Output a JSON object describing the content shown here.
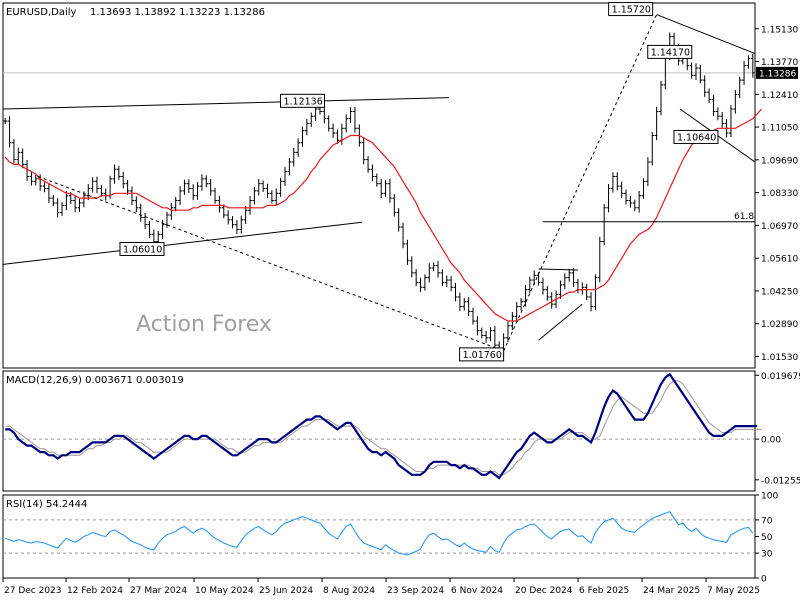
{
  "chart_data": [
    {
      "panel": "price",
      "type": "candlestick",
      "title": "EURUSD,Daily",
      "ohlc_readout": "1.13693 1.13892 1.13223 1.13286",
      "last_price_label": "1.13286",
      "watermark": "Action Forex",
      "ylim": [
        1.0105,
        1.162
      ],
      "y_ticks": [
        "1.15130",
        "1.13770",
        "1.12410",
        "1.11050",
        "1.09690",
        "1.08330",
        "1.06970",
        "1.05610",
        "1.04250",
        "1.02890",
        "1.01530"
      ],
      "close_series": [
        1.113,
        1.104,
        1.097,
        1.1,
        1.095,
        1.09,
        1.088,
        1.089,
        1.086,
        1.085,
        1.081,
        1.079,
        1.075,
        1.078,
        1.082,
        1.08,
        1.077,
        1.079,
        1.082,
        1.085,
        1.088,
        1.085,
        1.083,
        1.082,
        1.089,
        1.093,
        1.09,
        1.087,
        1.084,
        1.08,
        1.077,
        1.073,
        1.07,
        1.066,
        1.063,
        1.066,
        1.07,
        1.074,
        1.077,
        1.08,
        1.084,
        1.087,
        1.085,
        1.082,
        1.086,
        1.089,
        1.087,
        1.084,
        1.08,
        1.077,
        1.074,
        1.072,
        1.07,
        1.068,
        1.072,
        1.076,
        1.08,
        1.084,
        1.087,
        1.085,
        1.083,
        1.08,
        1.083,
        1.088,
        1.092,
        1.096,
        1.1,
        1.104,
        1.109,
        1.112,
        1.115,
        1.118,
        1.117,
        1.114,
        1.11,
        1.108,
        1.105,
        1.11,
        1.114,
        1.117,
        1.11,
        1.104,
        1.097,
        1.093,
        1.09,
        1.087,
        1.083,
        1.087,
        1.081,
        1.075,
        1.069,
        1.062,
        1.055,
        1.05,
        1.046,
        1.044,
        1.048,
        1.052,
        1.053,
        1.05,
        1.046,
        1.047,
        1.044,
        1.04,
        1.036,
        1.038,
        1.034,
        1.03,
        1.026,
        1.024,
        1.023,
        1.026,
        1.02,
        1.018,
        1.023,
        1.028,
        1.032,
        1.036,
        1.038,
        1.043,
        1.047,
        1.049,
        1.046,
        1.043,
        1.04,
        1.037,
        1.041,
        1.045,
        1.048,
        1.05,
        1.046,
        1.043,
        1.044,
        1.04,
        1.036,
        1.048,
        1.063,
        1.077,
        1.085,
        1.09,
        1.086,
        1.083,
        1.08,
        1.079,
        1.077,
        1.082,
        1.088,
        1.096,
        1.107,
        1.117,
        1.128,
        1.14,
        1.148,
        1.143,
        1.138,
        1.14,
        1.136,
        1.132,
        1.135,
        1.13,
        1.125,
        1.122,
        1.117,
        1.115,
        1.112,
        1.108,
        1.118,
        1.124,
        1.13,
        1.136,
        1.139,
        1.133
      ],
      "ma_series": [
        1.098,
        1.096,
        1.095,
        1.095,
        1.094,
        1.093,
        1.092,
        1.091,
        1.089,
        1.088,
        1.087,
        1.086,
        1.085,
        1.084,
        1.083,
        1.083,
        1.082,
        1.081,
        1.081,
        1.081,
        1.081,
        1.081,
        1.082,
        1.082,
        1.082,
        1.083,
        1.083,
        1.083,
        1.083,
        1.083,
        1.083,
        1.082,
        1.081,
        1.08,
        1.079,
        1.078,
        1.077,
        1.077,
        1.076,
        1.076,
        1.076,
        1.076,
        1.076,
        1.077,
        1.077,
        1.078,
        1.078,
        1.078,
        1.078,
        1.078,
        1.078,
        1.077,
        1.077,
        1.077,
        1.077,
        1.077,
        1.077,
        1.077,
        1.077,
        1.077,
        1.078,
        1.078,
        1.078,
        1.079,
        1.08,
        1.082,
        1.083,
        1.085,
        1.087,
        1.089,
        1.092,
        1.094,
        1.097,
        1.099,
        1.101,
        1.103,
        1.104,
        1.105,
        1.106,
        1.107,
        1.107,
        1.107,
        1.106,
        1.105,
        1.104,
        1.102,
        1.1,
        1.098,
        1.096,
        1.094,
        1.091,
        1.088,
        1.085,
        1.082,
        1.079,
        1.075,
        1.072,
        1.069,
        1.066,
        1.063,
        1.06,
        1.057,
        1.054,
        1.052,
        1.05,
        1.047,
        1.045,
        1.043,
        1.041,
        1.039,
        1.037,
        1.035,
        1.033,
        1.032,
        1.031,
        1.03,
        1.03,
        1.03,
        1.031,
        1.032,
        1.033,
        1.034,
        1.035,
        1.036,
        1.037,
        1.038,
        1.039,
        1.04,
        1.041,
        1.042,
        1.042,
        1.043,
        1.043,
        1.043,
        1.043,
        1.043,
        1.044,
        1.045,
        1.047,
        1.05,
        1.053,
        1.056,
        1.059,
        1.062,
        1.064,
        1.066,
        1.067,
        1.068,
        1.07,
        1.073,
        1.077,
        1.081,
        1.085,
        1.089,
        1.093,
        1.097,
        1.1,
        1.103,
        1.105,
        1.107,
        1.108,
        1.109,
        1.109,
        1.11,
        1.11,
        1.11,
        1.11,
        1.11,
        1.111,
        1.112,
        1.113,
        1.114,
        1.116,
        1.118
      ],
      "annotations": [
        {
          "label": "1.15720",
          "x": 149,
          "y": 1.1572
        },
        {
          "label": "1.14170",
          "x": 152,
          "y": 1.1417
        },
        {
          "label": "1.12136",
          "x": 68,
          "y": 1.1214
        },
        {
          "label": "1.10640",
          "x": 158,
          "y": 1.1064
        },
        {
          "label": "1.06010",
          "x": 29,
          "y": 1.0601
        },
        {
          "label": "1.01760",
          "x": 114,
          "y": 1.0176
        },
        {
          "label": "61.8",
          "y": 1.0712
        }
      ]
    },
    {
      "panel": "macd",
      "type": "line",
      "title": "MACD(12,26,9) 0.003671 0.003019",
      "ylim": [
        -0.016,
        0.021
      ],
      "y_ticks": [
        "0.019679",
        "0.00",
        "-0.012552"
      ],
      "macd_series": [
        0.003,
        0.003,
        0.002,
        0.0,
        -0.001,
        -0.002,
        -0.002,
        -0.003,
        -0.004,
        -0.004,
        -0.005,
        -0.005,
        -0.006,
        -0.005,
        -0.005,
        -0.004,
        -0.004,
        -0.004,
        -0.003,
        -0.002,
        -0.001,
        -0.001,
        -0.001,
        -0.001,
        0.0,
        0.001,
        0.001,
        0.001,
        0.0,
        -0.001,
        -0.002,
        -0.003,
        -0.004,
        -0.005,
        -0.006,
        -0.005,
        -0.004,
        -0.003,
        -0.002,
        -0.001,
        0.0,
        0.001,
        0.001,
        0.0,
        0.0,
        0.001,
        0.001,
        0.0,
        -0.001,
        -0.002,
        -0.003,
        -0.004,
        -0.005,
        -0.005,
        -0.004,
        -0.003,
        -0.002,
        -0.001,
        0.0,
        0.0,
        0.0,
        -0.001,
        -0.001,
        0.0,
        0.001,
        0.002,
        0.003,
        0.004,
        0.005,
        0.006,
        0.006,
        0.007,
        0.007,
        0.006,
        0.005,
        0.004,
        0.003,
        0.004,
        0.005,
        0.005,
        0.003,
        0.001,
        -0.001,
        -0.003,
        -0.004,
        -0.004,
        -0.005,
        -0.004,
        -0.005,
        -0.006,
        -0.008,
        -0.009,
        -0.01,
        -0.011,
        -0.011,
        -0.011,
        -0.01,
        -0.008,
        -0.007,
        -0.007,
        -0.007,
        -0.007,
        -0.008,
        -0.008,
        -0.009,
        -0.008,
        -0.009,
        -0.009,
        -0.01,
        -0.011,
        -0.011,
        -0.01,
        -0.011,
        -0.012,
        -0.01,
        -0.008,
        -0.006,
        -0.004,
        -0.003,
        -0.001,
        0.001,
        0.002,
        0.001,
        0.0,
        -0.001,
        -0.001,
        0.0,
        0.001,
        0.002,
        0.003,
        0.002,
        0.001,
        0.001,
        0.0,
        -0.001,
        0.002,
        0.006,
        0.01,
        0.013,
        0.015,
        0.014,
        0.012,
        0.01,
        0.008,
        0.006,
        0.006,
        0.006,
        0.008,
        0.011,
        0.014,
        0.017,
        0.019,
        0.02,
        0.018,
        0.016,
        0.014,
        0.012,
        0.01,
        0.008,
        0.006,
        0.004,
        0.002,
        0.001,
        0.001,
        0.001,
        0.002,
        0.003,
        0.004,
        0.004,
        0.004,
        0.004,
        0.004,
        0.004
      ],
      "signal_series": [
        0.004,
        0.004,
        0.003,
        0.002,
        0.001,
        0.0,
        -0.001,
        -0.002,
        -0.003,
        -0.003,
        -0.004,
        -0.004,
        -0.005,
        -0.005,
        -0.005,
        -0.005,
        -0.005,
        -0.005,
        -0.004,
        -0.003,
        -0.003,
        -0.002,
        -0.002,
        -0.001,
        -0.001,
        0.0,
        0.0,
        0.001,
        0.001,
        0.0,
        -0.001,
        -0.001,
        -0.002,
        -0.003,
        -0.004,
        -0.004,
        -0.004,
        -0.004,
        -0.003,
        -0.002,
        -0.001,
        0.0,
        0.0,
        0.0,
        0.0,
        0.0,
        0.0,
        0.0,
        0.0,
        -0.001,
        -0.002,
        -0.003,
        -0.003,
        -0.004,
        -0.004,
        -0.004,
        -0.003,
        -0.002,
        -0.002,
        -0.001,
        -0.001,
        -0.001,
        -0.001,
        -0.001,
        0.0,
        0.001,
        0.002,
        0.003,
        0.004,
        0.004,
        0.005,
        0.006,
        0.006,
        0.006,
        0.006,
        0.005,
        0.004,
        0.004,
        0.004,
        0.004,
        0.004,
        0.003,
        0.001,
        0.0,
        -0.001,
        -0.002,
        -0.003,
        -0.003,
        -0.004,
        -0.005,
        -0.006,
        -0.007,
        -0.008,
        -0.009,
        -0.01,
        -0.01,
        -0.01,
        -0.009,
        -0.009,
        -0.008,
        -0.008,
        -0.008,
        -0.008,
        -0.008,
        -0.008,
        -0.008,
        -0.008,
        -0.009,
        -0.009,
        -0.01,
        -0.01,
        -0.01,
        -0.01,
        -0.011,
        -0.011,
        -0.01,
        -0.009,
        -0.007,
        -0.006,
        -0.004,
        -0.003,
        -0.001,
        0.0,
        0.0,
        0.0,
        0.0,
        0.0,
        0.0,
        0.001,
        0.002,
        0.002,
        0.002,
        0.002,
        0.001,
        0.0,
        0.0,
        0.001,
        0.004,
        0.007,
        0.01,
        0.012,
        0.013,
        0.012,
        0.011,
        0.01,
        0.009,
        0.008,
        0.008,
        0.008,
        0.01,
        0.012,
        0.015,
        0.017,
        0.018,
        0.018,
        0.017,
        0.015,
        0.013,
        0.011,
        0.009,
        0.007,
        0.005,
        0.004,
        0.003,
        0.002,
        0.002,
        0.002,
        0.003,
        0.003,
        0.003,
        0.003,
        0.003,
        0.003,
        0.003
      ]
    },
    {
      "panel": "rsi",
      "type": "line",
      "title": "RSI(14) 54.2444",
      "ylim": [
        0,
        100
      ],
      "y_ticks": [
        "100",
        "70",
        "50",
        "30",
        "0"
      ],
      "levels": [
        70,
        30
      ],
      "rsi_series": [
        48,
        46,
        44,
        46,
        45,
        43,
        42,
        44,
        43,
        42,
        40,
        38,
        36,
        42,
        48,
        45,
        43,
        46,
        50,
        52,
        55,
        53,
        51,
        50,
        56,
        58,
        55,
        52,
        48,
        44,
        42,
        40,
        37,
        35,
        34,
        42,
        48,
        52,
        54,
        56,
        60,
        62,
        58,
        54,
        58,
        60,
        57,
        52,
        48,
        45,
        42,
        40,
        38,
        37,
        45,
        52,
        56,
        60,
        62,
        58,
        55,
        52,
        56,
        62,
        66,
        68,
        70,
        72,
        74,
        72,
        70,
        68,
        66,
        60,
        54,
        50,
        47,
        55,
        62,
        65,
        56,
        48,
        42,
        40,
        38,
        36,
        34,
        40,
        36,
        33,
        30,
        29,
        28,
        30,
        32,
        35,
        45,
        52,
        54,
        50,
        46,
        47,
        44,
        40,
        38,
        42,
        38,
        35,
        33,
        32,
        31,
        38,
        33,
        31,
        42,
        50,
        54,
        58,
        59,
        62,
        64,
        65,
        60,
        55,
        50,
        47,
        52,
        56,
        58,
        59,
        54,
        50,
        51,
        46,
        42,
        55,
        62,
        68,
        70,
        72,
        66,
        60,
        57,
        56,
        55,
        60,
        64,
        68,
        72,
        74,
        76,
        78,
        80,
        72,
        64,
        66,
        60,
        56,
        60,
        54,
        50,
        48,
        46,
        45,
        44,
        43,
        52,
        55,
        58,
        60,
        61,
        54
      ]
    }
  ],
  "x_axis_labels": [
    "27 Dec 2023",
    "12 Feb 2024",
    "27 Mar 2024",
    "10 May 2024",
    "25 Jun 2024",
    "8 Aug 2024",
    "23 Sep 2024",
    "6 Nov 2024",
    "20 Dec 2024",
    "6 Feb 2025",
    "24 Mar 2025",
    "7 May 2025"
  ],
  "colors": {
    "candles": "#000000",
    "ma": "#e8191c",
    "macd": "#00007f",
    "signal": "#9a9a9a",
    "rsi": "#1e90ff",
    "trendline": "#000000",
    "watermark": "#9a9a9a",
    "last_price_bg": "#000000",
    "last_price_text": "#ffffff"
  }
}
